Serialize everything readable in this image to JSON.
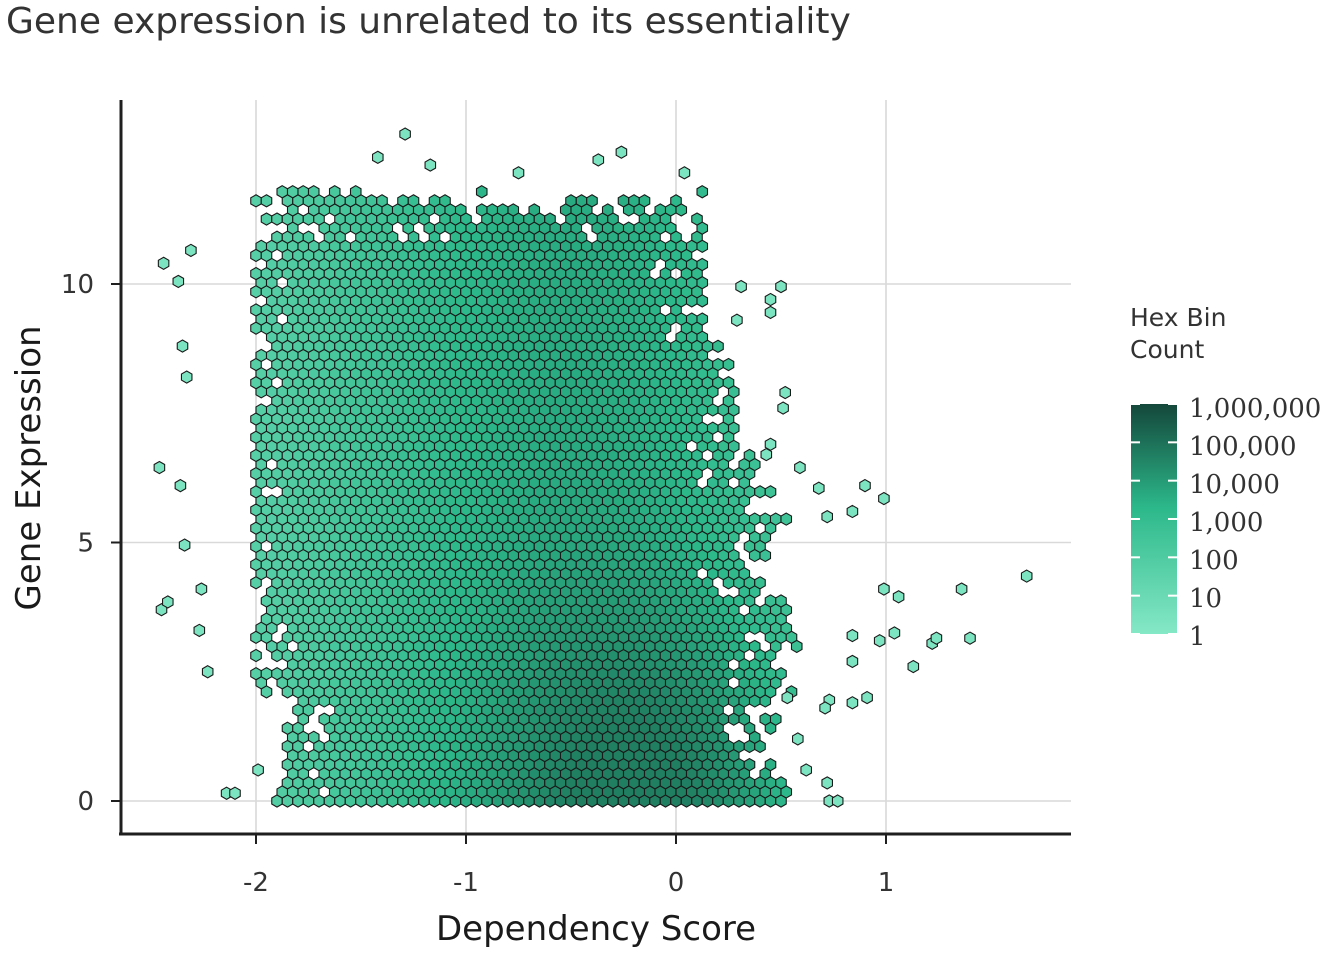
{
  "chart_data": {
    "type": "hexbin",
    "title": "Gene expression is unrelated to its essentiality",
    "xlabel": "Dependency Score",
    "ylabel": "Gene Expression",
    "xlim": [
      -2.6,
      1.9
    ],
    "ylim": [
      -0.6,
      13.5
    ],
    "x_ticks": [
      -2,
      -1,
      0,
      1
    ],
    "y_ticks": [
      0,
      5,
      10
    ],
    "x_tick_labels": [
      "-2",
      "-1",
      "0",
      "1"
    ],
    "y_tick_labels": [
      "0",
      "5",
      "10"
    ],
    "grid": true,
    "legend": {
      "title_lines": [
        "Hex Bin",
        "Count"
      ],
      "placement": "right",
      "scale": "log10",
      "breaks": [
        1,
        10,
        100,
        1000,
        10000,
        100000,
        1000000
      ],
      "labels": [
        "1",
        "10",
        "100",
        "1,000",
        "10,000",
        "100,000",
        "1,000,000"
      ],
      "color_low": "#85e8c6",
      "color_mid": "#2cb88a",
      "color_high": "#14473a"
    },
    "density_region": {
      "x_range": [
        -1.95,
        0.8
      ],
      "y_range": [
        0,
        12.5
      ],
      "peak": {
        "x": -0.05,
        "y": 0.1
      }
    },
    "outliers": [
      {
        "x": -2.45,
        "y": 3.7
      },
      {
        "x": -2.42,
        "y": 3.85
      },
      {
        "x": -2.46,
        "y": 6.45
      },
      {
        "x": -2.36,
        "y": 6.1
      },
      {
        "x": -2.34,
        "y": 4.95
      },
      {
        "x": -2.33,
        "y": 8.2
      },
      {
        "x": -2.35,
        "y": 8.8
      },
      {
        "x": -2.37,
        "y": 10.05
      },
      {
        "x": -2.44,
        "y": 10.4
      },
      {
        "x": -2.31,
        "y": 10.65
      },
      {
        "x": -2.26,
        "y": 4.1
      },
      {
        "x": -2.27,
        "y": 3.3
      },
      {
        "x": -2.23,
        "y": 2.5
      },
      {
        "x": -2.14,
        "y": 0.15
      },
      {
        "x": -2.1,
        "y": 0.15
      },
      {
        "x": -1.99,
        "y": 0.6
      },
      {
        "x": -1.17,
        "y": 12.3
      },
      {
        "x": -1.29,
        "y": 12.9
      },
      {
        "x": -1.42,
        "y": 12.45
      },
      {
        "x": -0.26,
        "y": 12.55
      },
      {
        "x": -0.37,
        "y": 12.4
      },
      {
        "x": 0.04,
        "y": 12.15
      },
      {
        "x": -0.75,
        "y": 12.15
      },
      {
        "x": 0.31,
        "y": 9.95
      },
      {
        "x": 0.45,
        "y": 9.45
      },
      {
        "x": 0.5,
        "y": 9.95
      },
      {
        "x": 0.45,
        "y": 9.7
      },
      {
        "x": 0.29,
        "y": 9.3
      },
      {
        "x": 0.52,
        "y": 7.9
      },
      {
        "x": 0.51,
        "y": 7.6
      },
      {
        "x": 0.45,
        "y": 6.9
      },
      {
        "x": 0.43,
        "y": 6.7
      },
      {
        "x": 0.59,
        "y": 6.45
      },
      {
        "x": 0.68,
        "y": 6.05
      },
      {
        "x": 0.9,
        "y": 6.1
      },
      {
        "x": 0.99,
        "y": 5.85
      },
      {
        "x": 0.84,
        "y": 5.6
      },
      {
        "x": 0.72,
        "y": 5.5
      },
      {
        "x": 1.36,
        "y": 4.1
      },
      {
        "x": 1.67,
        "y": 4.35
      },
      {
        "x": 0.99,
        "y": 4.1
      },
      {
        "x": 1.06,
        "y": 3.95
      },
      {
        "x": 1.4,
        "y": 3.15
      },
      {
        "x": 1.22,
        "y": 3.05
      },
      {
        "x": 1.24,
        "y": 3.15
      },
      {
        "x": 1.13,
        "y": 2.6
      },
      {
        "x": 1.04,
        "y": 3.25
      },
      {
        "x": 0.97,
        "y": 3.1
      },
      {
        "x": 0.84,
        "y": 3.2
      },
      {
        "x": 0.84,
        "y": 2.7
      },
      {
        "x": 0.73,
        "y": 1.95
      },
      {
        "x": 0.71,
        "y": 1.8
      },
      {
        "x": 0.84,
        "y": 1.9
      },
      {
        "x": 0.91,
        "y": 2.0
      },
      {
        "x": 0.53,
        "y": 2.0
      },
      {
        "x": 0.58,
        "y": 1.2
      },
      {
        "x": 0.72,
        "y": 0.35
      },
      {
        "x": 0.62,
        "y": 0.6
      },
      {
        "x": 0.73,
        "y": 0.0
      },
      {
        "x": 0.77,
        "y": 0.0
      }
    ]
  }
}
